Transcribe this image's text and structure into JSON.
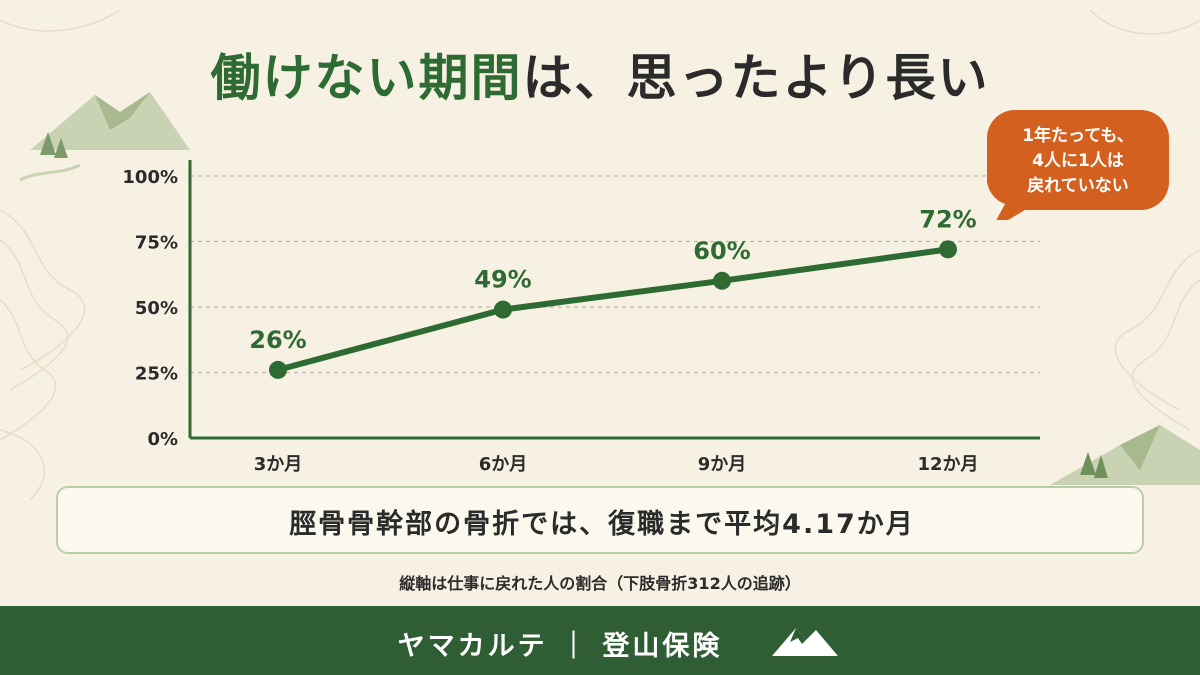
{
  "title": {
    "highlight": "働けない期間",
    "rest": "は、思ったより長い"
  },
  "callout": {
    "line1": "1年たっても、",
    "line2": "4人に1人は",
    "line3": "戻れていない"
  },
  "note": "脛骨骨幹部の骨折では、復職まで平均4.17か月",
  "caption": "縦軸は仕事に戻れた人の割合（下肢骨折312人の追跡）",
  "footer": {
    "text": "ヤマカルテ ｜ 登山保険",
    "icon": "mountain-icon"
  },
  "colors": {
    "line": "#2e6b33",
    "accent": "#d4601f",
    "footer": "#2f5e34"
  },
  "chart_data": {
    "type": "line",
    "categories": [
      "3か月",
      "6か月",
      "9か月",
      "12か月"
    ],
    "values": [
      26,
      49,
      60,
      72
    ],
    "data_labels": [
      "26%",
      "49%",
      "60%",
      "72%"
    ],
    "yticks": [
      "0%",
      "25%",
      "50%",
      "75%",
      "100%"
    ],
    "ylim": [
      0,
      100
    ],
    "grid": "horizontal-dashed"
  }
}
